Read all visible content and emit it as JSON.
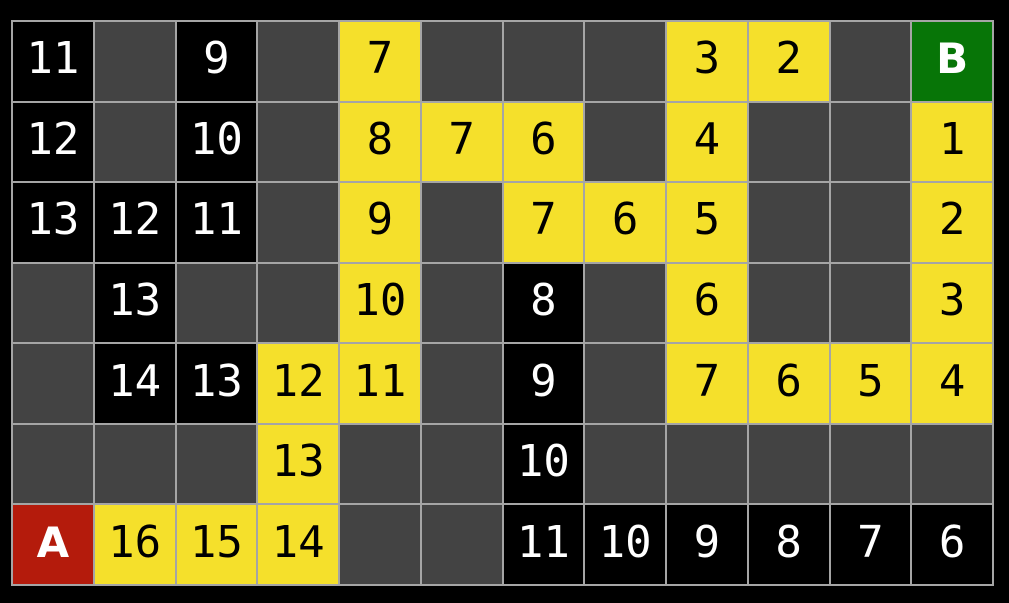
{
  "title": "grid-pathfinding-visualization",
  "colors": {
    "background": "#000000",
    "grid_line": "#a5a5a5",
    "cell_unexplored": "#434343",
    "cell_visited": "#000000",
    "cell_path": "#f5e02b",
    "cell_start": "#b41b0c",
    "cell_goal": "#077507",
    "text_on_dark": "#ffffff",
    "text_on_path": "#000000"
  },
  "grid": {
    "rows": 7,
    "cols": 12,
    "start_label": "A",
    "goal_label": "B",
    "cell_types_legend": {
      "unexplored": "dark gray empty cell",
      "visited": "black cell with white distance number",
      "path": "yellow cell on highlighted path with black distance number",
      "start": "red start cell labeled A",
      "goal": "green goal cell labeled B"
    },
    "cells": [
      [
        {
          "type": "visited",
          "label": "11"
        },
        {
          "type": "unexplored",
          "label": ""
        },
        {
          "type": "visited",
          "label": "9"
        },
        {
          "type": "unexplored",
          "label": ""
        },
        {
          "type": "path",
          "label": "7"
        },
        {
          "type": "unexplored",
          "label": ""
        },
        {
          "type": "unexplored",
          "label": ""
        },
        {
          "type": "unexplored",
          "label": ""
        },
        {
          "type": "path",
          "label": "3"
        },
        {
          "type": "path",
          "label": "2"
        },
        {
          "type": "unexplored",
          "label": ""
        },
        {
          "type": "goal",
          "label": "B"
        }
      ],
      [
        {
          "type": "visited",
          "label": "12"
        },
        {
          "type": "unexplored",
          "label": ""
        },
        {
          "type": "visited",
          "label": "10"
        },
        {
          "type": "unexplored",
          "label": ""
        },
        {
          "type": "path",
          "label": "8"
        },
        {
          "type": "path",
          "label": "7"
        },
        {
          "type": "path",
          "label": "6"
        },
        {
          "type": "unexplored",
          "label": ""
        },
        {
          "type": "path",
          "label": "4"
        },
        {
          "type": "unexplored",
          "label": ""
        },
        {
          "type": "unexplored",
          "label": ""
        },
        {
          "type": "path",
          "label": "1"
        }
      ],
      [
        {
          "type": "visited",
          "label": "13"
        },
        {
          "type": "visited",
          "label": "12"
        },
        {
          "type": "visited",
          "label": "11"
        },
        {
          "type": "unexplored",
          "label": ""
        },
        {
          "type": "path",
          "label": "9"
        },
        {
          "type": "unexplored",
          "label": ""
        },
        {
          "type": "path",
          "label": "7"
        },
        {
          "type": "path",
          "label": "6"
        },
        {
          "type": "path",
          "label": "5"
        },
        {
          "type": "unexplored",
          "label": ""
        },
        {
          "type": "unexplored",
          "label": ""
        },
        {
          "type": "path",
          "label": "2"
        }
      ],
      [
        {
          "type": "unexplored",
          "label": ""
        },
        {
          "type": "visited",
          "label": "13"
        },
        {
          "type": "unexplored",
          "label": ""
        },
        {
          "type": "unexplored",
          "label": ""
        },
        {
          "type": "path",
          "label": "10"
        },
        {
          "type": "unexplored",
          "label": ""
        },
        {
          "type": "visited",
          "label": "8"
        },
        {
          "type": "unexplored",
          "label": ""
        },
        {
          "type": "path",
          "label": "6"
        },
        {
          "type": "unexplored",
          "label": ""
        },
        {
          "type": "unexplored",
          "label": ""
        },
        {
          "type": "path",
          "label": "3"
        }
      ],
      [
        {
          "type": "unexplored",
          "label": ""
        },
        {
          "type": "visited",
          "label": "14"
        },
        {
          "type": "visited",
          "label": "13"
        },
        {
          "type": "path",
          "label": "12"
        },
        {
          "type": "path",
          "label": "11"
        },
        {
          "type": "unexplored",
          "label": ""
        },
        {
          "type": "visited",
          "label": "9"
        },
        {
          "type": "unexplored",
          "label": ""
        },
        {
          "type": "path",
          "label": "7"
        },
        {
          "type": "path",
          "label": "6"
        },
        {
          "type": "path",
          "label": "5"
        },
        {
          "type": "path",
          "label": "4"
        }
      ],
      [
        {
          "type": "unexplored",
          "label": ""
        },
        {
          "type": "unexplored",
          "label": ""
        },
        {
          "type": "unexplored",
          "label": ""
        },
        {
          "type": "path",
          "label": "13"
        },
        {
          "type": "unexplored",
          "label": ""
        },
        {
          "type": "unexplored",
          "label": ""
        },
        {
          "type": "visited",
          "label": "10"
        },
        {
          "type": "unexplored",
          "label": ""
        },
        {
          "type": "unexplored",
          "label": ""
        },
        {
          "type": "unexplored",
          "label": ""
        },
        {
          "type": "unexplored",
          "label": ""
        },
        {
          "type": "unexplored",
          "label": ""
        }
      ],
      [
        {
          "type": "start",
          "label": "A"
        },
        {
          "type": "path",
          "label": "16"
        },
        {
          "type": "path",
          "label": "15"
        },
        {
          "type": "path",
          "label": "14"
        },
        {
          "type": "unexplored",
          "label": ""
        },
        {
          "type": "unexplored",
          "label": ""
        },
        {
          "type": "visited",
          "label": "11"
        },
        {
          "type": "visited",
          "label": "10"
        },
        {
          "type": "visited",
          "label": "9"
        },
        {
          "type": "visited",
          "label": "8"
        },
        {
          "type": "visited",
          "label": "7"
        },
        {
          "type": "visited",
          "label": "6"
        }
      ]
    ]
  }
}
